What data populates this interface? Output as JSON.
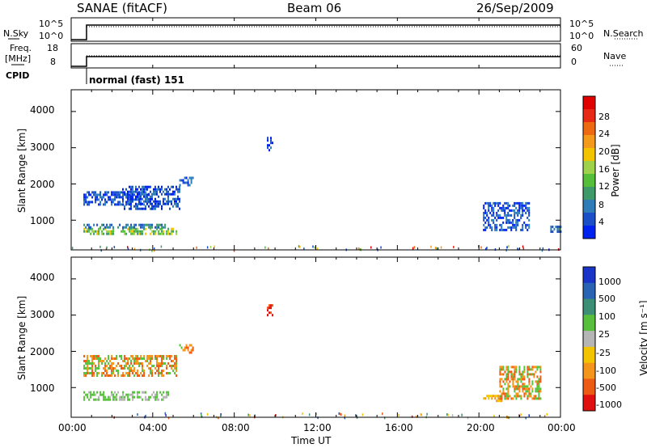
{
  "header": {
    "station": "SANAE (fitACF)",
    "beam": "Beam 06",
    "date": "26/Sep/2009"
  },
  "strips": {
    "nsky": {
      "label": "N.Sky",
      "ticks": [
        "10^5",
        "10^0"
      ]
    },
    "nsearch": {
      "label": "N.Search",
      "ticks": [
        "10^5",
        "10^0"
      ]
    },
    "freq": {
      "label_line1": "Freq.",
      "label_line2": "[MHz]",
      "ticks": [
        "18",
        "8"
      ]
    },
    "nave": {
      "label": "Nave",
      "ticks": [
        "60",
        "0"
      ]
    },
    "cpid": {
      "label": "CPID",
      "value": "normal (fast) 151"
    }
  },
  "chart_data": [
    {
      "type": "heatmap",
      "name": "power",
      "ylabel": "Slant Range [km]",
      "xlabel": "",
      "xlim": [
        0,
        24
      ],
      "ylim": [
        180,
        4600
      ],
      "yticks": [
        "1000",
        "2000",
        "3000",
        "4000"
      ],
      "colorbar": {
        "label": "Power [dB]",
        "range": [
          0,
          32
        ],
        "ticks": [
          "4",
          "8",
          "12",
          "16",
          "20",
          "24",
          "28"
        ],
        "colors": [
          "#0022ee",
          "#1a4fc8",
          "#2e7db8",
          "#3f9a6a",
          "#55bf3a",
          "#9ed24a",
          "#f2c400",
          "#f49a1a",
          "#ee6a12",
          "#e62a16",
          "#e00000"
        ]
      },
      "patches": [
        {
          "t": [
            0.6,
            5.2
          ],
          "r": [
            640,
            790
          ],
          "level": "high"
        },
        {
          "t": [
            0.6,
            4.6
          ],
          "r": [
            800,
            900
          ],
          "level": "mid"
        },
        {
          "t": [
            0.6,
            3.8
          ],
          "r": [
            1450,
            1800
          ],
          "level": "low"
        },
        {
          "t": [
            2.5,
            5.3
          ],
          "r": [
            1300,
            1950
          ],
          "level": "low"
        },
        {
          "t": [
            5.3,
            6.0
          ],
          "r": [
            1950,
            2200
          ],
          "level": "low"
        },
        {
          "t": [
            9.6,
            9.9
          ],
          "r": [
            2950,
            3300
          ],
          "level": "low"
        },
        {
          "t": [
            20.2,
            22.5
          ],
          "r": [
            700,
            1500
          ],
          "level": "low"
        },
        {
          "t": [
            23.5,
            24.0
          ],
          "r": [
            700,
            850
          ],
          "level": "mid"
        }
      ]
    },
    {
      "type": "heatmap",
      "name": "velocity",
      "ylabel": "Slant Range [km]",
      "xlabel": "Time UT",
      "xlim": [
        0,
        24
      ],
      "ylim": [
        180,
        4600
      ],
      "yticks": [
        "1000",
        "2000",
        "3000",
        "4000"
      ],
      "xticks": [
        "00:00",
        "04:00",
        "08:00",
        "12:00",
        "16:00",
        "20:00",
        "00:00"
      ],
      "colorbar": {
        "label": "Velocity [m s⁻¹]",
        "ticks": [
          "1000",
          "500",
          "100",
          "25",
          "-25",
          "-100",
          "-500",
          "-1000"
        ],
        "colors": [
          "#1a34c8",
          "#2a62b4",
          "#3c8f74",
          "#58bf3c",
          "#b5b5b5",
          "#f2c400",
          "#f2951a",
          "#ec5a14",
          "#e01010"
        ]
      },
      "patches": [
        {
          "t": [
            0.6,
            4.8
          ],
          "r": [
            640,
            900
          ],
          "level": "green-gray"
        },
        {
          "t": [
            0.6,
            5.2
          ],
          "r": [
            1300,
            1900
          ],
          "level": "orange"
        },
        {
          "t": [
            5.3,
            6.0
          ],
          "r": [
            1950,
            2200
          ],
          "level": "orange"
        },
        {
          "t": [
            9.6,
            9.9
          ],
          "r": [
            3000,
            3300
          ],
          "level": "red"
        },
        {
          "t": [
            20.2,
            21.2
          ],
          "r": [
            600,
            800
          ],
          "level": "yellow"
        },
        {
          "t": [
            21.0,
            23.0
          ],
          "r": [
            700,
            1600
          ],
          "level": "orange"
        }
      ]
    }
  ]
}
